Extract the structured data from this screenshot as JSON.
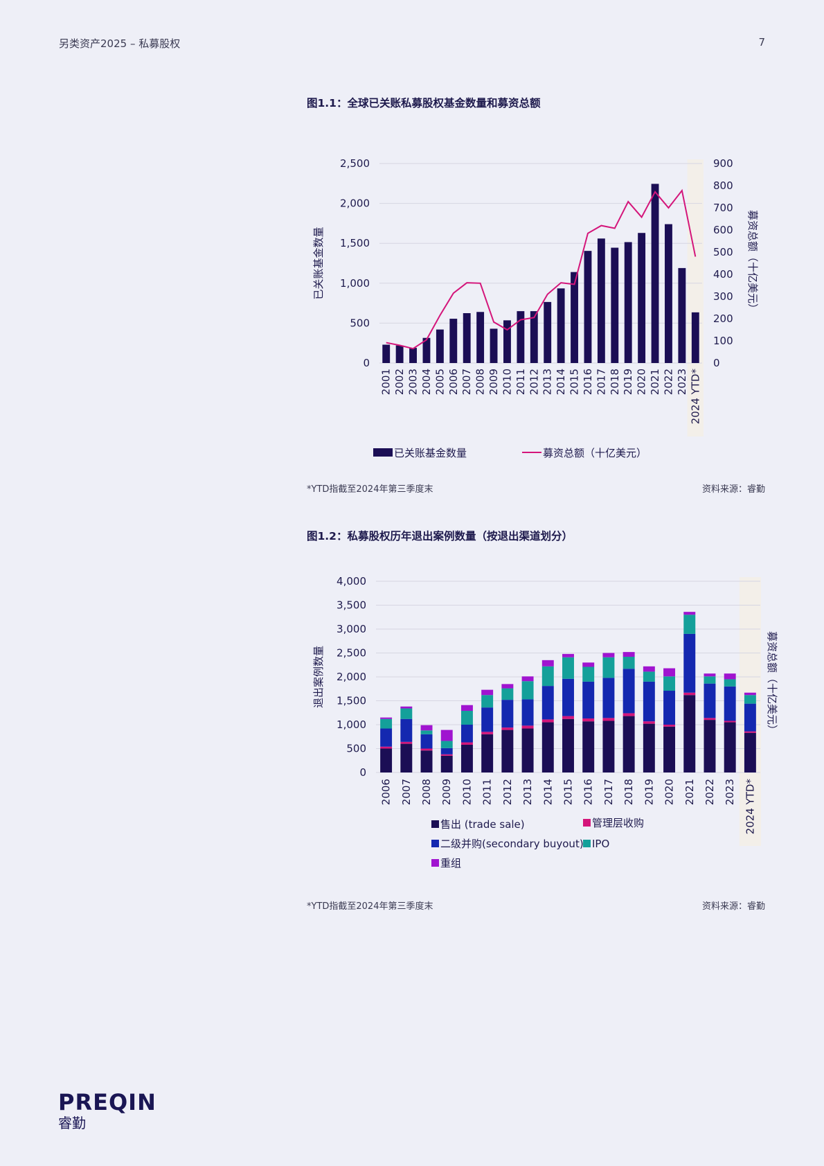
{
  "header": {
    "left": "另类资产2025 – 私募股权",
    "page_number": "7"
  },
  "figure1": {
    "title": "图1.1：全球已关账私募股权基金数量和募资总额",
    "footnote": "*YTD指截至2024年第三季度末",
    "source": "资料来源：睿勤"
  },
  "figure2": {
    "title": "图1.2：私募股权历年退出案例数量（按退出渠道划分）",
    "footnote": "*YTD指截至2024年第三季度末",
    "source": "资料来源：睿勤"
  },
  "brand": {
    "name": "PREQIN",
    "name_cn": "睿勤"
  },
  "colors": {
    "navy": "#1b0e55",
    "magenta": "#d4157a",
    "blue": "#1428b0",
    "teal": "#14a09a",
    "purple": "#a014d0",
    "ytd_band": "#f3efe9",
    "grid": "#d6d6e2"
  },
  "chart_data": [
    {
      "type": "bar",
      "title": "图1.1：全球已关账私募股权基金数量和募资总额",
      "categories": [
        "2001",
        "2002",
        "2003",
        "2004",
        "2005",
        "2006",
        "2007",
        "2008",
        "2009",
        "2010",
        "2011",
        "2012",
        "2013",
        "2014",
        "2015",
        "2016",
        "2017",
        "2018",
        "2019",
        "2020",
        "2021",
        "2022",
        "2023",
        "2024 YTD*"
      ],
      "series": [
        {
          "name": "已关账基金数量",
          "type": "bar",
          "axis": "left",
          "values": [
            230,
            220,
            190,
            315,
            420,
            555,
            625,
            640,
            430,
            535,
            650,
            650,
            765,
            935,
            1140,
            1405,
            1560,
            1445,
            1515,
            1630,
            2245,
            1740,
            1190,
            635
          ]
        },
        {
          "name": "募资总额（十亿美元）",
          "type": "line",
          "axis": "right",
          "values": [
            92,
            80,
            65,
            105,
            215,
            315,
            362,
            360,
            185,
            150,
            195,
            205,
            310,
            362,
            355,
            585,
            620,
            608,
            728,
            658,
            772,
            700,
            778,
            480
          ]
        }
      ],
      "ylabel": "已关账基金数量",
      "y2label": "募资总额（十亿美元）",
      "ylim": [
        0,
        2500
      ],
      "y2lim": [
        0,
        900
      ],
      "yticks": [
        "0",
        "500",
        "1,000",
        "1,500",
        "2,000",
        "2,500"
      ],
      "y2ticks": [
        "0",
        "100",
        "200",
        "300",
        "400",
        "500",
        "600",
        "700",
        "800",
        "900"
      ],
      "grid": true,
      "legend": "bottom"
    },
    {
      "type": "bar",
      "stacked": true,
      "title": "图1.2：私募股权历年退出案例数量（按退出渠道划分）",
      "categories": [
        "2006",
        "2007",
        "2008",
        "2009",
        "2010",
        "2011",
        "2012",
        "2013",
        "2014",
        "2015",
        "2016",
        "2017",
        "2018",
        "2019",
        "2020",
        "2021",
        "2022",
        "2023",
        "2024 YTD*"
      ],
      "series": [
        {
          "name": "售出 (trade sale)",
          "values": [
            500,
            600,
            460,
            350,
            580,
            800,
            890,
            920,
            1050,
            1120,
            1070,
            1080,
            1180,
            1020,
            960,
            1620,
            1100,
            1050,
            830
          ]
        },
        {
          "name": "管理层收购",
          "values": [
            40,
            40,
            40,
            30,
            50,
            50,
            50,
            60,
            60,
            60,
            60,
            60,
            60,
            50,
            40,
            50,
            40,
            30,
            30
          ]
        },
        {
          "name": "二级并购(secondary buyout)",
          "values": [
            380,
            480,
            300,
            130,
            370,
            510,
            580,
            550,
            700,
            780,
            770,
            840,
            930,
            830,
            710,
            1230,
            720,
            720,
            580
          ]
        },
        {
          "name": "IPO",
          "values": [
            200,
            220,
            80,
            150,
            290,
            260,
            240,
            380,
            410,
            450,
            310,
            430,
            250,
            210,
            300,
            400,
            150,
            150,
            180
          ]
        },
        {
          "name": "重组",
          "values": [
            30,
            40,
            110,
            230,
            120,
            110,
            90,
            100,
            130,
            70,
            90,
            90,
            100,
            110,
            170,
            60,
            60,
            120,
            50
          ]
        }
      ],
      "ylabel": "退出案例数量",
      "y2label": "募资总额（十亿美元）",
      "ylim": [
        0,
        4000
      ],
      "yticks": [
        "0",
        "500",
        "1,000",
        "1,500",
        "2,000",
        "2,500",
        "3,000",
        "3,500",
        "4,000"
      ],
      "grid": true,
      "legend": "bottom"
    }
  ]
}
